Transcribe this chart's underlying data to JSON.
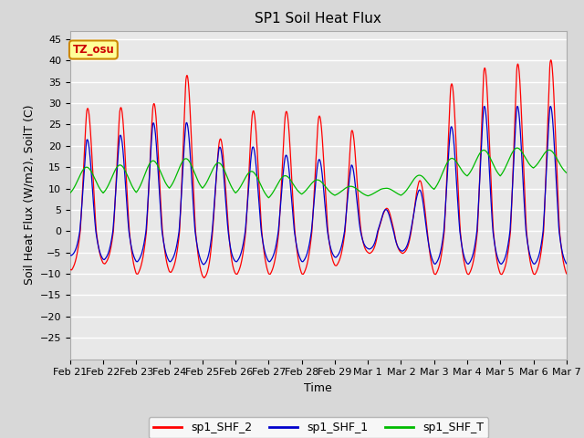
{
  "title": "SP1 Soil Heat Flux",
  "ylabel": "Soil Heat Flux (W/m2), SoilT (C)",
  "xlabel": "Time",
  "ylim": [
    -30,
    47
  ],
  "yticks": [
    -25,
    -20,
    -15,
    -10,
    -5,
    0,
    5,
    10,
    15,
    20,
    25,
    30,
    35,
    40,
    45
  ],
  "xtick_labels": [
    "Feb 21",
    "Feb 22",
    "Feb 23",
    "Feb 24",
    "Feb 25",
    "Feb 26",
    "Feb 27",
    "Feb 28",
    "Feb 29",
    "Mar 1",
    "Mar 2",
    "Mar 3",
    "Mar 4",
    "Mar 5",
    "Mar 6",
    "Mar 7"
  ],
  "color_shf2": "#ff0000",
  "color_shf1": "#0000cc",
  "color_shfT": "#00bb00",
  "legend_labels": [
    "sp1_SHF_2",
    "sp1_SHF_1",
    "sp1_SHF_T"
  ],
  "annotation_text": "TZ_osu",
  "annotation_bg": "#ffff99",
  "annotation_border": "#cc8800",
  "bg_color": "#d8d8d8",
  "plot_bg": "#e8e8e8",
  "grid_color": "#ffffff",
  "title_fontsize": 11,
  "label_fontsize": 9,
  "tick_fontsize": 8
}
